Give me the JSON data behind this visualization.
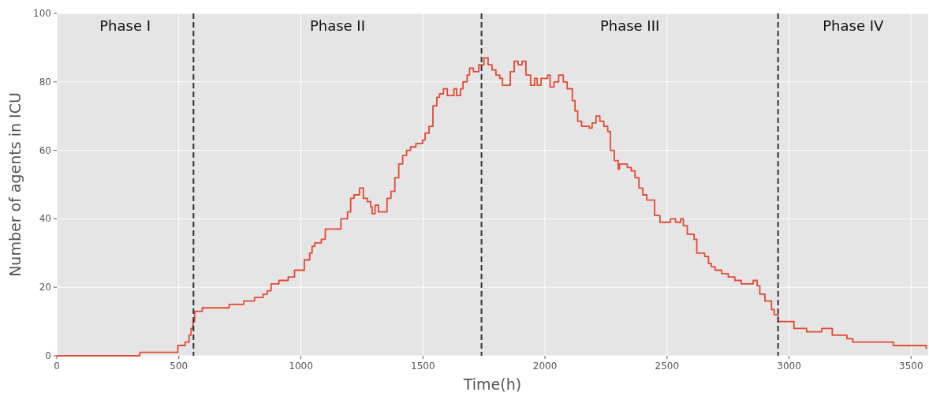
{
  "chart_data": {
    "type": "step",
    "xlabel": "Time(h)",
    "ylabel": "Number of agents in ICU",
    "xlim": [
      0,
      3570
    ],
    "ylim": [
      0,
      100
    ],
    "xticks": [
      0,
      500,
      1000,
      1500,
      2000,
      2500,
      3000,
      3500
    ],
    "yticks": [
      0,
      20,
      40,
      60,
      80,
      100
    ],
    "grid": true,
    "series": [
      {
        "color": "#e24a33",
        "x": [
          0,
          340,
          496,
          526,
          542,
          550,
          558,
          565,
          596,
          706,
          766,
          810,
          845,
          862,
          878,
          910,
          948,
          974,
          1010,
          1014,
          1036,
          1046,
          1057,
          1084,
          1100,
          1164,
          1191,
          1204,
          1218,
          1240,
          1256,
          1272,
          1286,
          1292,
          1304,
          1318,
          1353,
          1369,
          1385,
          1401,
          1417,
          1433,
          1449,
          1471,
          1498,
          1509,
          1525,
          1541,
          1557,
          1568,
          1584,
          1600,
          1627,
          1638,
          1654,
          1664,
          1681,
          1691,
          1707,
          1729,
          1750,
          1767,
          1783,
          1799,
          1815,
          1826,
          1858,
          1874,
          1890,
          1906,
          1922,
          1941,
          1957,
          1968,
          1984,
          2011,
          2021,
          2037,
          2056,
          2075,
          2091,
          2112,
          2123,
          2134,
          2150,
          2182,
          2193,
          2209,
          2225,
          2241,
          2257,
          2268,
          2284,
          2300,
          2305,
          2337,
          2353,
          2369,
          2385,
          2401,
          2417,
          2449,
          2471,
          2514,
          2535,
          2556,
          2567,
          2583,
          2611,
          2622,
          2654,
          2670,
          2681,
          2697,
          2724,
          2751,
          2778,
          2804,
          2853,
          2869,
          2880,
          2901,
          2928,
          2939,
          2955,
          3020,
          3072,
          3134,
          3177,
          3237,
          3261,
          3427,
          3562
        ],
        "values": [
          0,
          1,
          3,
          4,
          6,
          8,
          10,
          13,
          14,
          15,
          16,
          17,
          18,
          19,
          21,
          22,
          23,
          25,
          25,
          28,
          30,
          32,
          33,
          34,
          37,
          40,
          42,
          46,
          47,
          49,
          46,
          45,
          43.5,
          41.5,
          44,
          42,
          46,
          48,
          52,
          56,
          58.5,
          60,
          61,
          62,
          63,
          65,
          67,
          73,
          75.5,
          76.5,
          78,
          76,
          78,
          76,
          78,
          80,
          82,
          84,
          83,
          85,
          87,
          85,
          83.5,
          82,
          81,
          79,
          83,
          86,
          85,
          86,
          82,
          79,
          81,
          79,
          81,
          82,
          78.5,
          80,
          82,
          80,
          78,
          74.5,
          71.5,
          68.5,
          67,
          66.5,
          68,
          70,
          68.5,
          67,
          65.5,
          60,
          57,
          54.5,
          56,
          55,
          54,
          52,
          49,
          47,
          45.5,
          41,
          39,
          40,
          39,
          40,
          38,
          35.5,
          34,
          30,
          29,
          27,
          26,
          25,
          24,
          23,
          22,
          21,
          22,
          20.5,
          18,
          16,
          13.5,
          12,
          10,
          8,
          7,
          8,
          6,
          5,
          4,
          3,
          2
        ]
      }
    ],
    "ref_lines": [
      {
        "axis": "x",
        "value": 560,
        "color": "#333333",
        "line_style": "dashed"
      },
      {
        "axis": "x",
        "value": 1740,
        "color": "#333333",
        "line_style": "dashed"
      },
      {
        "axis": "x",
        "value": 2955,
        "color": "#333333",
        "line_style": "dashed"
      }
    ],
    "annotations": [
      "Phase I",
      "Phase II",
      "Phase III",
      "Phase IV"
    ]
  }
}
